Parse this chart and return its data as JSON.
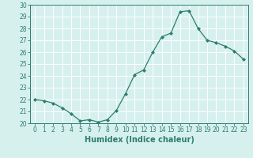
{
  "x": [
    0,
    1,
    2,
    3,
    4,
    5,
    6,
    7,
    8,
    9,
    10,
    11,
    12,
    13,
    14,
    15,
    16,
    17,
    18,
    19,
    20,
    21,
    22,
    23
  ],
  "y": [
    22.0,
    21.9,
    21.7,
    21.3,
    20.8,
    20.2,
    20.3,
    20.1,
    20.3,
    21.1,
    22.5,
    24.1,
    24.5,
    26.0,
    27.3,
    27.6,
    29.4,
    29.5,
    28.0,
    27.0,
    26.8,
    26.5,
    26.1,
    25.4
  ],
  "line_color": "#2e7d6e",
  "marker": "D",
  "marker_size": 2.0,
  "linewidth": 0.9,
  "xlabel": "Humidex (Indice chaleur)",
  "xlim": [
    -0.5,
    23.5
  ],
  "ylim": [
    20,
    30
  ],
  "yticks": [
    20,
    21,
    22,
    23,
    24,
    25,
    26,
    27,
    28,
    29,
    30
  ],
  "xticks": [
    0,
    1,
    2,
    3,
    4,
    5,
    6,
    7,
    8,
    9,
    10,
    11,
    12,
    13,
    14,
    15,
    16,
    17,
    18,
    19,
    20,
    21,
    22,
    23
  ],
  "bg_color": "#d6f0ee",
  "grid_color": "#b8ddd9",
  "line_grid_color": "#c8e8e4",
  "tick_color": "#2e7d6e",
  "label_color": "#2e7d6e",
  "xlabel_fontsize": 7,
  "tick_fontsize": 5.5
}
